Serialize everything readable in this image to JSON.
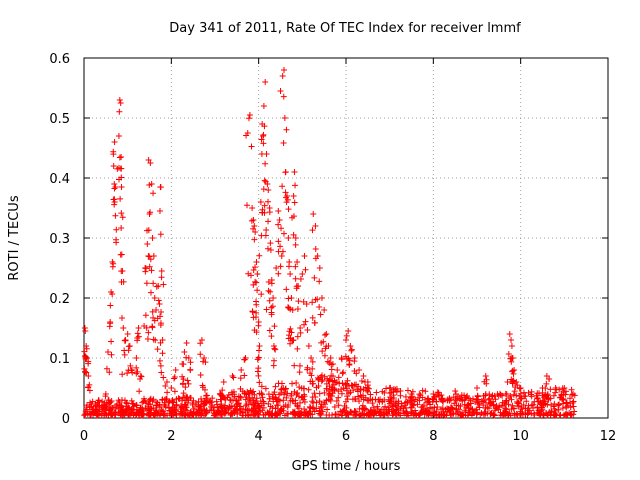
{
  "chart_data": {
    "type": "scatter",
    "title": "Day 341 of 2011, Rate Of TEC Index for receiver lmmf",
    "xlabel": "GPS time / hours",
    "ylabel": "ROTI / TECUs",
    "xlim": [
      0,
      12
    ],
    "ylim": [
      0,
      0.6
    ],
    "xticks": [
      0,
      2,
      4,
      6,
      8,
      10,
      12
    ],
    "xtick_labels": [
      "0",
      "2",
      "4",
      "6",
      "8",
      "10",
      "12"
    ],
    "yticks": [
      0,
      0.1,
      0.2,
      0.3,
      0.4,
      0.5,
      0.6
    ],
    "ytick_labels": [
      "0",
      "0.1",
      "0.2",
      "0.3",
      "0.4",
      "0.5",
      "0.6"
    ],
    "grid": true,
    "marker": "plus",
    "color": "#ff0000",
    "series": [
      {
        "name": "ROTI",
        "x_range": [
          0,
          11.25
        ],
        "baseline_envelope": [
          [
            0,
            0.025
          ],
          [
            2,
            0.03
          ],
          [
            3.5,
            0.04
          ],
          [
            4.5,
            0.06
          ],
          [
            5.5,
            0.07
          ],
          [
            6.5,
            0.05
          ],
          [
            8,
            0.04
          ],
          [
            9,
            0.035
          ],
          [
            10,
            0.04
          ],
          [
            11.25,
            0.045
          ]
        ],
        "points": [
          [
            0.02,
            0.15
          ],
          [
            0.03,
            0.145
          ],
          [
            0.05,
            0.12
          ],
          [
            0.06,
            0.1
          ],
          [
            0.1,
            0.07
          ],
          [
            0.5,
            0.04
          ],
          [
            0.55,
            0.11
          ],
          [
            0.6,
            0.16
          ],
          [
            0.62,
            0.21
          ],
          [
            0.65,
            0.26
          ],
          [
            0.68,
            0.42
          ],
          [
            0.7,
            0.46
          ],
          [
            0.72,
            0.385
          ],
          [
            0.8,
            0.47
          ],
          [
            0.82,
            0.53
          ],
          [
            0.84,
            0.525
          ],
          [
            0.85,
            0.435
          ],
          [
            0.86,
            0.385
          ],
          [
            0.88,
            0.245
          ],
          [
            0.9,
            0.15
          ],
          [
            0.95,
            0.13
          ],
          [
            1.0,
            0.14
          ],
          [
            1.05,
            0.12
          ],
          [
            1.1,
            0.08
          ],
          [
            1.2,
            0.1
          ],
          [
            1.25,
            0.15
          ],
          [
            1.3,
            0.07
          ],
          [
            1.4,
            0.25
          ],
          [
            1.45,
            0.29
          ],
          [
            1.48,
            0.43
          ],
          [
            1.5,
            0.34
          ],
          [
            1.52,
            0.425
          ],
          [
            1.55,
            0.39
          ],
          [
            1.57,
            0.3
          ],
          [
            1.6,
            0.27
          ],
          [
            1.62,
            0.2
          ],
          [
            1.65,
            0.18
          ],
          [
            1.7,
            0.22
          ],
          [
            1.73,
            0.19
          ],
          [
            1.75,
            0.385
          ],
          [
            1.78,
            0.245
          ],
          [
            1.8,
            0.13
          ],
          [
            1.9,
            0.06
          ],
          [
            2.0,
            0.05
          ],
          [
            2.1,
            0.08
          ],
          [
            2.25,
            0.09
          ],
          [
            2.3,
            0.11
          ],
          [
            2.35,
            0.125
          ],
          [
            2.4,
            0.1
          ],
          [
            2.7,
            0.13
          ],
          [
            2.75,
            0.1
          ],
          [
            3.2,
            0.06
          ],
          [
            3.4,
            0.07
          ],
          [
            3.6,
            0.08
          ],
          [
            3.7,
            0.1
          ],
          [
            3.75,
            0.475
          ],
          [
            3.8,
            0.505
          ],
          [
            3.85,
            0.35
          ],
          [
            3.88,
            0.33
          ],
          [
            3.9,
            0.32
          ],
          [
            3.92,
            0.31
          ],
          [
            3.95,
            0.26
          ],
          [
            3.97,
            0.24
          ],
          [
            4.0,
            0.16
          ],
          [
            4.02,
            0.12
          ],
          [
            4.05,
            0.36
          ],
          [
            4.08,
            0.49
          ],
          [
            4.1,
            0.47
          ],
          [
            4.12,
            0.52
          ],
          [
            4.15,
            0.56
          ],
          [
            4.18,
            0.44
          ],
          [
            4.2,
            0.39
          ],
          [
            4.22,
            0.38
          ],
          [
            4.25,
            0.35
          ],
          [
            4.28,
            0.28
          ],
          [
            4.3,
            0.23
          ],
          [
            4.33,
            0.2
          ],
          [
            4.35,
            0.12
          ],
          [
            4.4,
            0.25
          ],
          [
            4.45,
            0.345
          ],
          [
            4.48,
            0.33
          ],
          [
            4.5,
            0.545
          ],
          [
            4.55,
            0.57
          ],
          [
            4.58,
            0.58
          ],
          [
            4.6,
            0.5
          ],
          [
            4.62,
            0.41
          ],
          [
            4.65,
            0.37
          ],
          [
            4.68,
            0.3
          ],
          [
            4.7,
            0.26
          ],
          [
            4.72,
            0.24
          ],
          [
            4.75,
            0.2
          ],
          [
            4.78,
            0.18
          ],
          [
            4.8,
            0.37
          ],
          [
            4.82,
            0.41
          ],
          [
            4.85,
            0.3
          ],
          [
            4.88,
            0.26
          ],
          [
            4.9,
            0.22
          ],
          [
            4.95,
            0.15
          ],
          [
            5.0,
            0.24
          ],
          [
            5.05,
            0.27
          ],
          [
            5.1,
            0.19
          ],
          [
            5.15,
            0.12
          ],
          [
            5.2,
            0.1
          ],
          [
            5.25,
            0.34
          ],
          [
            5.3,
            0.32
          ],
          [
            5.35,
            0.27
          ],
          [
            5.4,
            0.25
          ],
          [
            5.45,
            0.2
          ],
          [
            5.5,
            0.18
          ],
          [
            5.55,
            0.14
          ],
          [
            5.6,
            0.12
          ],
          [
            5.65,
            0.1
          ],
          [
            5.7,
            0.09
          ],
          [
            5.8,
            0.08
          ],
          [
            5.9,
            0.1
          ],
          [
            6.0,
            0.13
          ],
          [
            6.05,
            0.145
          ],
          [
            6.1,
            0.12
          ],
          [
            6.2,
            0.1
          ],
          [
            6.3,
            0.08
          ],
          [
            6.4,
            0.07
          ],
          [
            6.5,
            0.06
          ],
          [
            7.0,
            0.05
          ],
          [
            7.5,
            0.04
          ],
          [
            8.0,
            0.04
          ],
          [
            8.5,
            0.045
          ],
          [
            9.0,
            0.05
          ],
          [
            9.2,
            0.07
          ],
          [
            9.7,
            0.06
          ],
          [
            9.75,
            0.14
          ],
          [
            9.78,
            0.13
          ],
          [
            9.8,
            0.12
          ],
          [
            9.82,
            0.1
          ],
          [
            9.85,
            0.08
          ],
          [
            9.9,
            0.06
          ],
          [
            10.0,
            0.05
          ],
          [
            10.5,
            0.05
          ],
          [
            10.6,
            0.07
          ],
          [
            10.65,
            0.065
          ],
          [
            10.8,
            0.05
          ],
          [
            11.0,
            0.05
          ],
          [
            11.2,
            0.04
          ]
        ]
      }
    ]
  }
}
